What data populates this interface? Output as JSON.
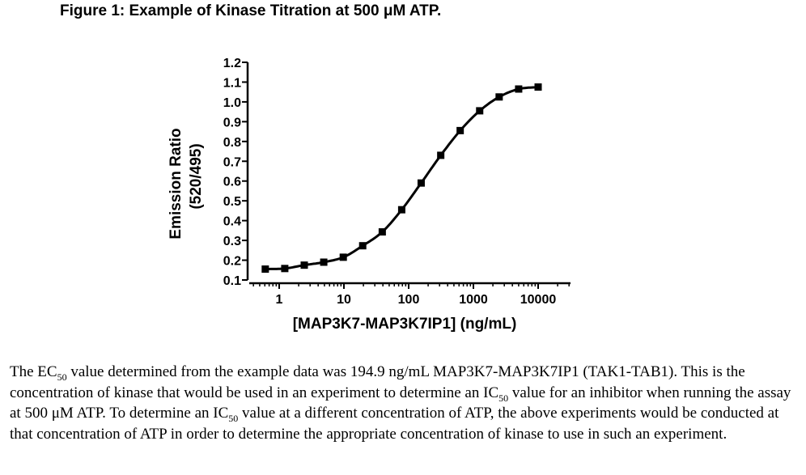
{
  "figure": {
    "title": "Figure 1: Example of Kinase Titration at 500 μM ATP."
  },
  "chart_data": {
    "type": "scatter",
    "ylabel_line1": "Emission Ratio",
    "ylabel_line2": "(520/495)",
    "xlabel": "[MAP3K7-MAP3K7IP1] (ng/mL)",
    "x_scale": "log",
    "xlim": [
      0.5,
      20000
    ],
    "ylim": [
      0.1,
      1.2
    ],
    "x_ticks": [
      1,
      10,
      100,
      1000,
      10000
    ],
    "x_tick_labels": [
      "1",
      "10",
      "100",
      "1000",
      "10000"
    ],
    "y_ticks": [
      0.1,
      0.2,
      0.3,
      0.4,
      0.5,
      0.6,
      0.7,
      0.8,
      0.9,
      1.0,
      1.1,
      1.2
    ],
    "y_tick_labels": [
      "0.1",
      "0.2",
      "0.3",
      "0.4",
      "0.5",
      "0.6",
      "0.7",
      "0.8",
      "0.9",
      "1.0",
      "1.1",
      "1.2"
    ],
    "grid": false,
    "legend": "none",
    "marker": "square",
    "fit": "sigmoidal",
    "color": "#000000",
    "x": [
      0.61,
      1.22,
      2.44,
      4.88,
      9.77,
      19.5,
      39.1,
      78.1,
      156,
      313,
      625,
      1250,
      2500,
      5000,
      10000
    ],
    "y": [
      0.155,
      0.158,
      0.175,
      0.19,
      0.215,
      0.273,
      0.343,
      0.455,
      0.59,
      0.73,
      0.855,
      0.955,
      1.025,
      1.065,
      1.075
    ]
  },
  "caption": {
    "p1": "The EC",
    "p1_sub": "50",
    "p2": " value determined from the example data was 194.9 ng/mL MAP3K7-MAP3K7IP1 (TAK1-TAB1). This is the concentration of kinase that would be used in an experiment to determine an IC",
    "p2_sub": "50",
    "p3": " value for an inhibitor when running the assay at 500 μM ATP.  To determine an IC",
    "p3_sub": "50",
    "p4": " value at a different concentration of ATP, the above experiments would be conducted at that concentration of ATP in order to determine the appropriate concentration of kinase to use in such an experiment."
  }
}
